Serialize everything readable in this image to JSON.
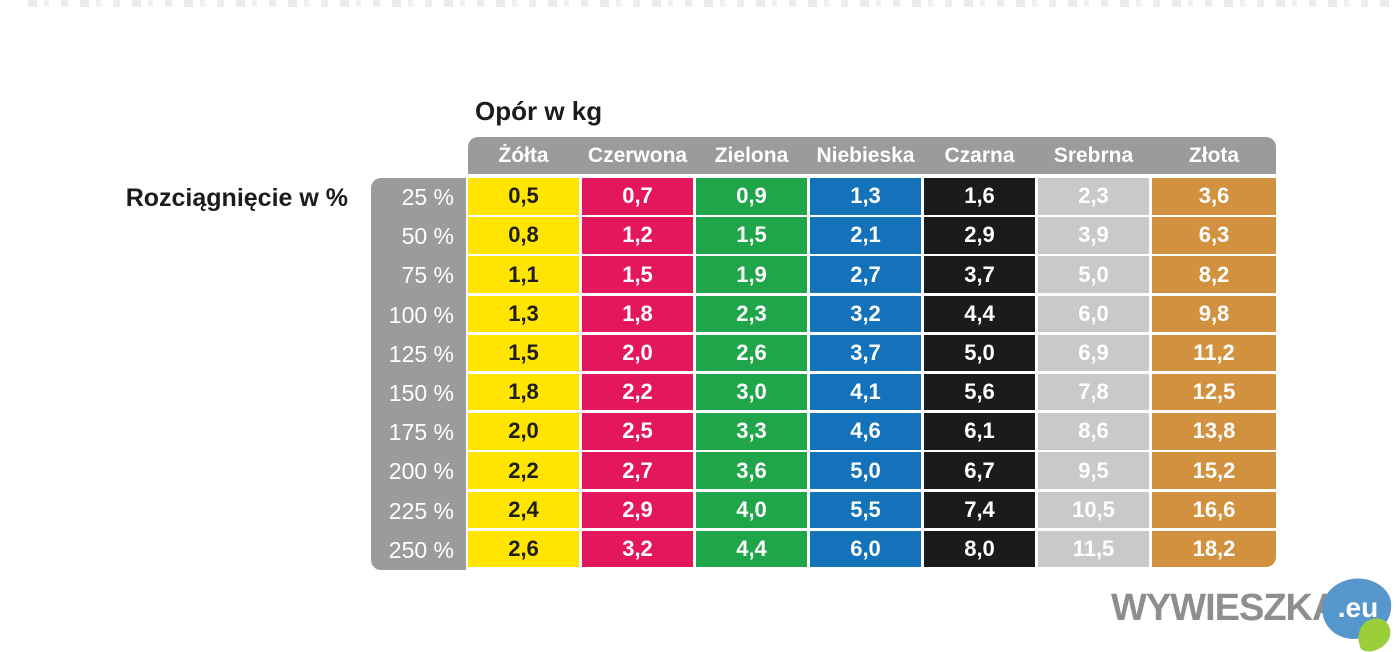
{
  "page": {
    "title": "Opór w kg",
    "row_axis_label": "Rozciągnięcie w %"
  },
  "chart_data": {
    "type": "table",
    "title": "Opór w kg",
    "row_header_label": "Rozciągnięcie w %",
    "columns": [
      {
        "label": "Żółta",
        "bg": "#ffe500",
        "text": "#1d1d1b"
      },
      {
        "label": "Czerwona",
        "bg": "#e4175c",
        "text": "#ffffff"
      },
      {
        "label": "Zielona",
        "bg": "#1fa54a",
        "text": "#ffffff"
      },
      {
        "label": "Niebieska",
        "bg": "#1372b9",
        "text": "#ffffff"
      },
      {
        "label": "Czarna",
        "bg": "#1b1b19",
        "text": "#ffffff"
      },
      {
        "label": "Srebrna",
        "bg": "#c9c9c9",
        "text": "#ffffff"
      },
      {
        "label": "Złota",
        "bg": "#d2913e",
        "text": "#ffffff"
      }
    ],
    "rows": [
      {
        "label": "25 %",
        "values": [
          "0,5",
          "0,7",
          "0,9",
          "1,3",
          "1,6",
          "2,3",
          "3,6"
        ]
      },
      {
        "label": "50 %",
        "values": [
          "0,8",
          "1,2",
          "1,5",
          "2,1",
          "2,9",
          "3,9",
          "6,3"
        ]
      },
      {
        "label": "75 %",
        "values": [
          "1,1",
          "1,5",
          "1,9",
          "2,7",
          "3,7",
          "5,0",
          "8,2"
        ]
      },
      {
        "label": "100 %",
        "values": [
          "1,3",
          "1,8",
          "2,3",
          "3,2",
          "4,4",
          "6,0",
          "9,8"
        ]
      },
      {
        "label": "125 %",
        "values": [
          "1,5",
          "2,0",
          "2,6",
          "3,7",
          "5,0",
          "6,9",
          "11,2"
        ]
      },
      {
        "label": "150 %",
        "values": [
          "1,8",
          "2,2",
          "3,0",
          "4,1",
          "5,6",
          "7,8",
          "12,5"
        ]
      },
      {
        "label": "175 %",
        "values": [
          "2,0",
          "2,5",
          "3,3",
          "4,6",
          "6,1",
          "8,6",
          "13,8"
        ]
      },
      {
        "label": "200 %",
        "values": [
          "2,2",
          "2,7",
          "3,6",
          "5,0",
          "6,7",
          "9,5",
          "15,2"
        ]
      },
      {
        "label": "225 %",
        "values": [
          "2,4",
          "2,9",
          "4,0",
          "5,5",
          "7,4",
          "10,5",
          "16,6"
        ]
      },
      {
        "label": "250 %",
        "values": [
          "2,6",
          "3,2",
          "4,4",
          "6,0",
          "8,0",
          "11,5",
          "18,2"
        ]
      }
    ],
    "layout": {
      "header_bar_color": "#9c9b9b",
      "row_label_bg": "#9c9b9b",
      "background": "#ffffff",
      "grid_gap_color": "#ffffff"
    }
  },
  "watermark": {
    "brand": "WYWIESZKA",
    "suffix": ".eu",
    "brand_color": "#8e8e8e",
    "blob_color": "#5596cc",
    "accent_color": "#9acf3a"
  }
}
